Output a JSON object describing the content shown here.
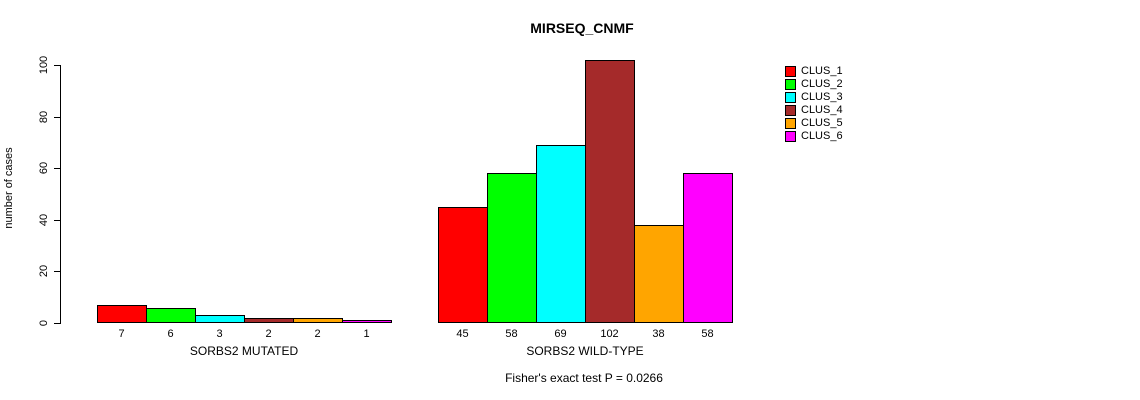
{
  "chart_data": {
    "type": "bar",
    "title": "MIRSEQ_CNMF",
    "ylabel": "number of cases",
    "xlabel": "",
    "ylim": [
      0,
      100
    ],
    "yticks": [
      0,
      20,
      40,
      60,
      80,
      100
    ],
    "grid": false,
    "legend_position": "right",
    "categories": [
      "SORBS2 MUTATED",
      "SORBS2 WILD-TYPE"
    ],
    "groups": [
      {
        "label": "SORBS2 MUTATED",
        "values": [
          7,
          6,
          3,
          2,
          2,
          1
        ]
      },
      {
        "label": "SORBS2 WILD-TYPE",
        "values": [
          45,
          58,
          69,
          102,
          38,
          58
        ]
      }
    ],
    "series": [
      {
        "name": "CLUS_1",
        "color": "#FF0000",
        "values": [
          7,
          45
        ]
      },
      {
        "name": "CLUS_2",
        "color": "#00FF00",
        "values": [
          6,
          58
        ]
      },
      {
        "name": "CLUS_3",
        "color": "#00FFFF",
        "values": [
          3,
          69
        ]
      },
      {
        "name": "CLUS_4",
        "color": "#A52A2A",
        "values": [
          2,
          102
        ]
      },
      {
        "name": "CLUS_5",
        "color": "#FFA500",
        "values": [
          2,
          38
        ]
      },
      {
        "name": "CLUS_6",
        "color": "#FF00FF",
        "values": [
          1,
          58
        ]
      }
    ],
    "annotation": "Fisher's exact test P = 0.0266"
  }
}
